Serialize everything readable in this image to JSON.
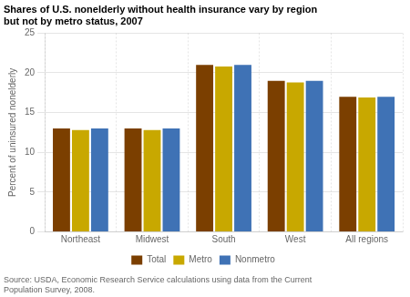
{
  "chart_data": {
    "type": "bar",
    "title": [
      "Shares of U.S. nonelderly without health insurance vary by region",
      "but not by metro status, 2007"
    ],
    "ylabel": "Percent of uninsured nonelderly",
    "source": [
      "Source: USDA, Economic Research Service calculations using data from the Current",
      "Population Survey, 2008."
    ],
    "categories": [
      "Northeast",
      "Midwest",
      "South",
      "West",
      "All regions"
    ],
    "series": [
      {
        "name": "Total",
        "color": "#7B3F00",
        "values": [
          13.0,
          13.0,
          21.0,
          19.0,
          17.0
        ]
      },
      {
        "name": "Metro",
        "color": "#C8A800",
        "values": [
          12.8,
          12.8,
          20.8,
          18.8,
          16.9
        ]
      },
      {
        "name": "Nonmetro",
        "color": "#3F72B5",
        "values": [
          13.0,
          13.0,
          21.0,
          19.0,
          17.0
        ]
      }
    ],
    "ylim": [
      0,
      25
    ],
    "yticks": [
      0,
      5,
      10,
      15,
      20,
      25
    ],
    "grid": true,
    "legend": "bottom"
  }
}
